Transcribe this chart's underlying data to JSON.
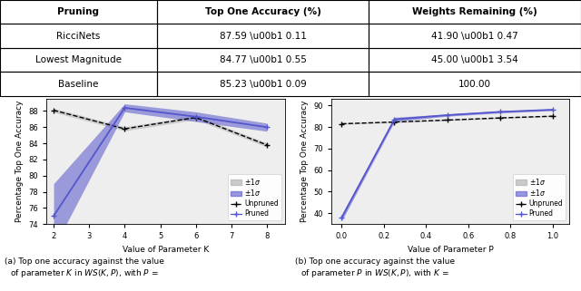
{
  "table": {
    "headers": [
      "Pruning",
      "Top One Accuracy (%)",
      "Weights Remaining (%)"
    ],
    "rows": [
      [
        "RicciNets",
        "87.59 \\u00b1 0.11",
        "41.90 \\u00b1 0.47"
      ],
      [
        "Lowest Magnitude",
        "84.77 \\u00b1 0.55",
        "45.00 \\u00b1 3.54"
      ],
      [
        "Baseline",
        "85.23 \\u00b1 0.09",
        "100.00"
      ]
    ]
  },
  "plot_left": {
    "x": [
      2,
      4,
      6,
      8
    ],
    "unpruned_mean": [
      88.1,
      85.8,
      87.2,
      83.8
    ],
    "unpruned_std": [
      0.25,
      0.25,
      0.25,
      0.25
    ],
    "pruned_mean": [
      75.0,
      88.4,
      87.3,
      86.0
    ],
    "pruned_std": [
      4.0,
      0.5,
      0.6,
      0.5
    ],
    "xlabel": "Value of Parameter K",
    "ylabel": "Percentage Top One Accuracy",
    "ylim": [
      74,
      89.5
    ],
    "yticks": [
      74,
      76,
      78,
      80,
      82,
      84,
      86,
      88
    ],
    "xticks": [
      2,
      3,
      4,
      5,
      6,
      7,
      8
    ]
  },
  "plot_right": {
    "x": [
      0.0,
      0.25,
      0.5,
      0.75,
      1.0
    ],
    "unpruned_mean": [
      81.5,
      82.3,
      83.2,
      84.2,
      85.0
    ],
    "unpruned_std": [
      0.3,
      0.3,
      0.3,
      0.3,
      0.3
    ],
    "pruned_mean": [
      38.0,
      83.5,
      85.5,
      87.0,
      88.0
    ],
    "pruned_std": [
      1.5,
      1.0,
      0.5,
      0.5,
      0.4
    ],
    "xlabel": "Value of Parameter P",
    "ylabel": "Percentage Top One Accuracy",
    "ylim": [
      35,
      93
    ],
    "yticks": [
      40,
      50,
      60,
      70,
      80,
      90
    ],
    "xticks": [
      0.0,
      0.2,
      0.4,
      0.6,
      0.8,
      1.0
    ]
  },
  "caption_left": "(a) Top one accuracy against the value\nof parameter $K$ in $WS(K, P)$, with $P$ =",
  "caption_right": "(b) Top one accuracy against the value\nof parameter $P$ in $WS(K, P)$, with $K$ =",
  "unpruned_color": "#aaaaaa",
  "pruned_color": "#5555cc",
  "table_fontsize": 7.5,
  "axis_fontsize": 6.5,
  "tick_fontsize": 6.0,
  "legend_fontsize": 5.5,
  "caption_fontsize": 6.5
}
